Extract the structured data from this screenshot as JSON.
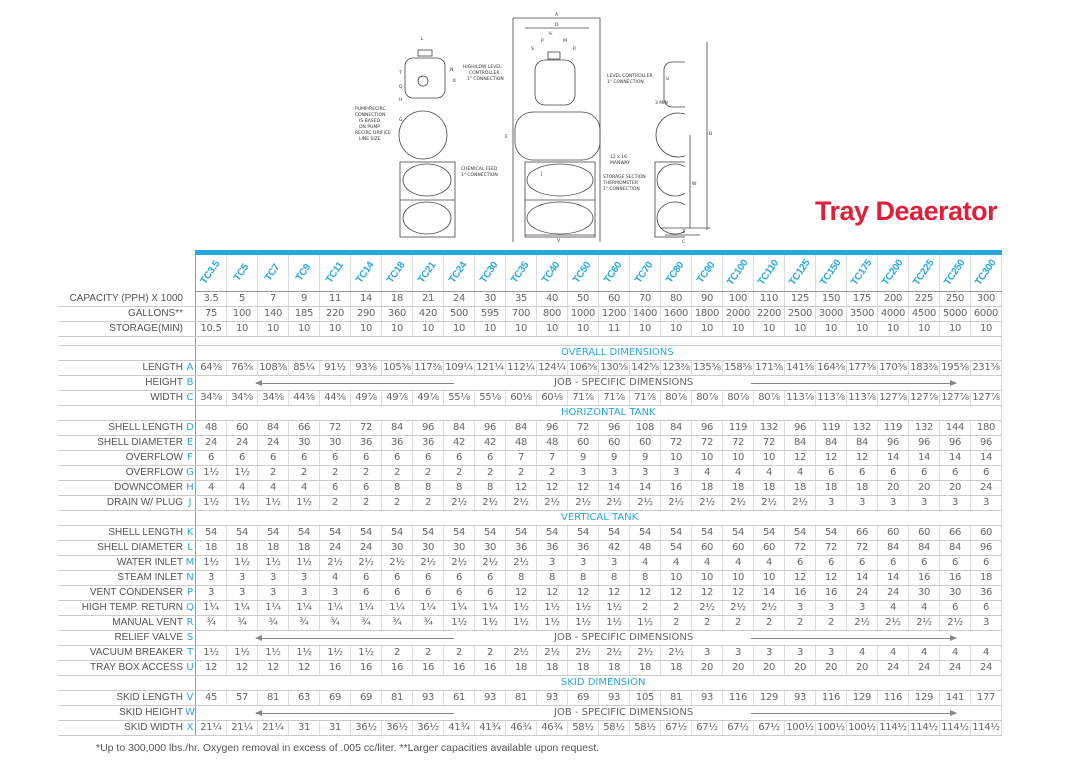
{
  "title": "Tray Deaerator",
  "drawing_labels": {
    "dims": [
      "A",
      "D",
      "L",
      "K",
      "E",
      "V",
      "B",
      "W",
      "Z",
      "C"
    ],
    "circles": [
      "T",
      "N",
      "Q",
      "H",
      "G",
      "S",
      "P",
      "M",
      "R",
      "J",
      "U"
    ],
    "fraction_label": "⅝",
    "min_label": "3 MIN",
    "callouts": {
      "pump_recirc": [
        "PUMP/RECIRC.",
        "CONNECTION",
        "IS BASED",
        "ON PUMP",
        "RECIRC ORIFICE",
        "LINE SIZE"
      ],
      "high_low": [
        "HIGH/LOW LEVEL",
        "CONTROLLER",
        "1\" CONNECTION"
      ],
      "level_controller": [
        "LEVEL CONTROLLER",
        "1\" CONNECTION"
      ],
      "chemical_feed": [
        "CHEMICAL FEED",
        "1\" CONNECTION"
      ],
      "manway": [
        "12 x 16",
        "MANWAY"
      ],
      "thermometer": [
        "STORAGE SECTION",
        "THERMOMETER",
        "1\" CONNECTION"
      ]
    }
  },
  "models": [
    "TC3.5",
    "TC5",
    "TC7",
    "TC9",
    "TC11",
    "TC14",
    "TC18",
    "TC21",
    "TC24",
    "TC30",
    "TC35",
    "TC40",
    "TC50",
    "TC60",
    "TC70",
    "TC80",
    "TC90",
    "TC100",
    "TC110",
    "TC125",
    "TC150",
    "TC175",
    "TC200",
    "TC225",
    "TC250",
    "TC300"
  ],
  "job_specific": "JOB - SPECIFIC DIMENSIONS",
  "rows": [
    {
      "type": "data",
      "label": "CAPACITY (PPH) X 1000",
      "letter": "",
      "values": [
        "3.5",
        "5",
        "7",
        "9",
        "11",
        "14",
        "18",
        "21",
        "24",
        "30",
        "35",
        "40",
        "50",
        "60",
        "70",
        "80",
        "90",
        "100",
        "110",
        "125",
        "150",
        "175",
        "200",
        "225",
        "250",
        "300"
      ]
    },
    {
      "type": "data",
      "label": "GALLONS**",
      "letter": "",
      "values": [
        "75",
        "100",
        "140",
        "185",
        "220",
        "290",
        "360",
        "420",
        "500",
        "595",
        "700",
        "800",
        "1000",
        "1200",
        "1400",
        "1600",
        "1800",
        "2000",
        "2200",
        "2500",
        "3000",
        "3500",
        "4000",
        "4500",
        "5000",
        "6000"
      ]
    },
    {
      "type": "data",
      "label": "STORAGE(MIN)",
      "letter": "",
      "values": [
        "10.5",
        "10",
        "10",
        "10",
        "10",
        "10",
        "10",
        "10",
        "10",
        "10",
        "10",
        "10",
        "10",
        "11",
        "10",
        "10",
        "10",
        "10",
        "10",
        "10",
        "10",
        "10",
        "10",
        "10",
        "10",
        "10"
      ]
    },
    {
      "type": "spacer"
    },
    {
      "type": "section",
      "title": "OVERALL DIMENSIONS"
    },
    {
      "type": "data",
      "label": "LENGTH",
      "letter": "A",
      "values": [
        "64⅜",
        "76⅜",
        "108⅜",
        "85¼",
        "91½",
        "93⅜",
        "105⅜",
        "117⅜",
        "109¼",
        "121¼",
        "112¼",
        "124¼",
        "106⅝",
        "130⅝",
        "142⅝",
        "123⅜",
        "135⅜",
        "158⅜",
        "171⅜",
        "141⅜",
        "164⅜",
        "177⅜",
        "170⅜",
        "183⅜",
        "195⅜",
        "231⅜"
      ]
    },
    {
      "type": "job",
      "label": "HEIGHT",
      "letter": "B"
    },
    {
      "type": "data",
      "label": "WIDTH",
      "letter": "C",
      "values": [
        "34⅝",
        "34⅝",
        "34⅝",
        "44⅜",
        "44⅜",
        "49⅞",
        "49⅞",
        "49⅞",
        "55⅛",
        "55⅛",
        "60⅛",
        "60⅛",
        "71⅞",
        "71⅞",
        "71⅞",
        "80⅞",
        "80⅞",
        "80⅞",
        "80⅞",
        "113⅞",
        "113⅞",
        "113⅞",
        "127⅞",
        "127⅞",
        "127⅞",
        "127⅞"
      ]
    },
    {
      "type": "section",
      "title": "HORIZONTAL TANK"
    },
    {
      "type": "data",
      "label": "SHELL LENGTH",
      "letter": "D",
      "values": [
        "48",
        "60",
        "84",
        "66",
        "72",
        "72",
        "84",
        "96",
        "84",
        "96",
        "84",
        "96",
        "72",
        "96",
        "108",
        "84",
        "96",
        "119",
        "132",
        "96",
        "119",
        "132",
        "119",
        "132",
        "144",
        "180"
      ]
    },
    {
      "type": "data",
      "label": "SHELL DIAMETER",
      "letter": "E",
      "values": [
        "24",
        "24",
        "24",
        "30",
        "30",
        "36",
        "36",
        "36",
        "42",
        "42",
        "48",
        "48",
        "60",
        "60",
        "60",
        "72",
        "72",
        "72",
        "72",
        "84",
        "84",
        "84",
        "96",
        "96",
        "96",
        "96"
      ]
    },
    {
      "type": "data",
      "label": "OVERFLOW",
      "letter": "F",
      "values": [
        "6",
        "6",
        "6",
        "6",
        "6",
        "6",
        "6",
        "6",
        "6",
        "6",
        "7",
        "7",
        "9",
        "9",
        "9",
        "10",
        "10",
        "10",
        "10",
        "12",
        "12",
        "12",
        "14",
        "14",
        "14",
        "14"
      ]
    },
    {
      "type": "data",
      "label": "OVERFLOW",
      "letter": "G",
      "values": [
        "1½",
        "1½",
        "2",
        "2",
        "2",
        "2",
        "2",
        "2",
        "2",
        "2",
        "2",
        "2",
        "3",
        "3",
        "3",
        "3",
        "4",
        "4",
        "4",
        "4",
        "6",
        "6",
        "6",
        "6",
        "6",
        "6"
      ]
    },
    {
      "type": "data",
      "label": "DOWNCOMER",
      "letter": "H",
      "values": [
        "4",
        "4",
        "4",
        "4",
        "6",
        "6",
        "8",
        "8",
        "8",
        "8",
        "12",
        "12",
        "12",
        "14",
        "14",
        "16",
        "18",
        "18",
        "18",
        "18",
        "18",
        "18",
        "20",
        "20",
        "20",
        "24"
      ]
    },
    {
      "type": "data",
      "label": "DRAIN W/ PLUG",
      "letter": "J",
      "values": [
        "1½",
        "1½",
        "1½",
        "1½",
        "2",
        "2",
        "2",
        "2",
        "2½",
        "2½",
        "2½",
        "2½",
        "2½",
        "2½",
        "2½",
        "2½",
        "2½",
        "2½",
        "2½",
        "2½",
        "3",
        "3",
        "3",
        "3",
        "3",
        "3"
      ]
    },
    {
      "type": "section",
      "title": "VERTICAL TANK"
    },
    {
      "type": "data",
      "label": "SHELL LENGTH",
      "letter": "K",
      "values": [
        "54",
        "54",
        "54",
        "54",
        "54",
        "54",
        "54",
        "54",
        "54",
        "54",
        "54",
        "54",
        "54",
        "54",
        "54",
        "54",
        "54",
        "54",
        "54",
        "54",
        "54",
        "66",
        "60",
        "60",
        "66",
        "60"
      ]
    },
    {
      "type": "data",
      "label": "SHELL DIAMETER",
      "letter": "L",
      "values": [
        "18",
        "18",
        "18",
        "18",
        "24",
        "24",
        "30",
        "30",
        "30",
        "30",
        "36",
        "36",
        "36",
        "42",
        "48",
        "54",
        "60",
        "60",
        "60",
        "72",
        "72",
        "72",
        "84",
        "84",
        "84",
        "96"
      ]
    },
    {
      "type": "data",
      "label": "WATER INLET",
      "letter": "M",
      "values": [
        "1½",
        "1½",
        "1½",
        "1½",
        "2½",
        "2½",
        "2½",
        "2½",
        "2½",
        "2½",
        "2½",
        "3",
        "3",
        "3",
        "4",
        "4",
        "4",
        "4",
        "4",
        "6",
        "6",
        "6",
        "6",
        "6",
        "6",
        "6"
      ]
    },
    {
      "type": "data",
      "label": "STEAM INLET",
      "letter": "N",
      "values": [
        "3",
        "3",
        "3",
        "3",
        "4",
        "6",
        "6",
        "6",
        "6",
        "6",
        "8",
        "8",
        "8",
        "8",
        "8",
        "10",
        "10",
        "10",
        "10",
        "12",
        "12",
        "14",
        "14",
        "16",
        "16",
        "18"
      ]
    },
    {
      "type": "data",
      "label": "VENT CONDENSER",
      "letter": "P",
      "values": [
        "3",
        "3",
        "3",
        "3",
        "3",
        "6",
        "6",
        "6",
        "6",
        "6",
        "12",
        "12",
        "12",
        "12",
        "12",
        "12",
        "12",
        "12",
        "14",
        "16",
        "16",
        "24",
        "24",
        "30",
        "30",
        "36"
      ]
    },
    {
      "type": "data",
      "label": "HIGH TEMP. RETURN",
      "letter": "Q",
      "values": [
        "1¼",
        "1¼",
        "1¼",
        "1¼",
        "1¼",
        "1¼",
        "1¼",
        "1¼",
        "1¼",
        "1¼",
        "1½",
        "1½",
        "1½",
        "1½",
        "2",
        "2",
        "2½",
        "2½",
        "2½",
        "3",
        "3",
        "3",
        "4",
        "4",
        "6",
        "6"
      ]
    },
    {
      "type": "data",
      "label": "MANUAL VENT",
      "letter": "R",
      "values": [
        "¾",
        "¾",
        "¾",
        "¾",
        "¾",
        "¾",
        "¾",
        "¾",
        "1½",
        "1½",
        "1½",
        "1½",
        "1½",
        "1½",
        "1½",
        "2",
        "2",
        "2",
        "2",
        "2",
        "2",
        "2½",
        "2½",
        "2½",
        "2½",
        "3"
      ]
    },
    {
      "type": "job",
      "label": "RELIEF VALVE",
      "letter": "S"
    },
    {
      "type": "data",
      "label": "VACUUM BREAKER",
      "letter": "T",
      "values": [
        "1½",
        "1½",
        "1½",
        "1½",
        "1½",
        "1½",
        "2",
        "2",
        "2",
        "2",
        "2½",
        "2½",
        "2½",
        "2½",
        "2½",
        "2½",
        "3",
        "3",
        "3",
        "3",
        "3",
        "4",
        "4",
        "4",
        "4",
        "4"
      ]
    },
    {
      "type": "data",
      "label": "TRAY BOX ACCESS",
      "letter": "U",
      "values": [
        "12",
        "12",
        "12",
        "12",
        "16",
        "16",
        "16",
        "16",
        "16",
        "16",
        "18",
        "18",
        "18",
        "18",
        "18",
        "18",
        "20",
        "20",
        "20",
        "20",
        "20",
        "20",
        "24",
        "24",
        "24",
        "24"
      ]
    },
    {
      "type": "section",
      "title": "SKID DIMENSION"
    },
    {
      "type": "data",
      "label": "SKID LENGTH",
      "letter": "V",
      "values": [
        "45",
        "57",
        "81",
        "63",
        "69",
        "69",
        "81",
        "93",
        "61",
        "93",
        "81",
        "93",
        "69",
        "93",
        "105",
        "81",
        "93",
        "116",
        "129",
        "93",
        "116",
        "129",
        "116",
        "129",
        "141",
        "177"
      ]
    },
    {
      "type": "job",
      "label": "SKID HEIGHT",
      "letter": "W"
    },
    {
      "type": "data",
      "label": "SKID WIDTH",
      "letter": "X",
      "values": [
        "21¼",
        "21¼",
        "21¼",
        "31",
        "31",
        "36½",
        "36½",
        "36½",
        "41¾",
        "41¾",
        "46¾",
        "46¾",
        "58½",
        "58½",
        "58½",
        "67½",
        "67½",
        "67½",
        "67½",
        "100½",
        "100½",
        "100½",
        "114½",
        "114½",
        "114½",
        "114½"
      ]
    }
  ],
  "footnote": "*Up to 300,000 lbs./hr. Oxygen removal in excess of .005 cc/liter.  **Larger capacities available upon request.",
  "colors": {
    "accent": "#29a8e0",
    "title": "#e0203a",
    "text": "#555555"
  }
}
